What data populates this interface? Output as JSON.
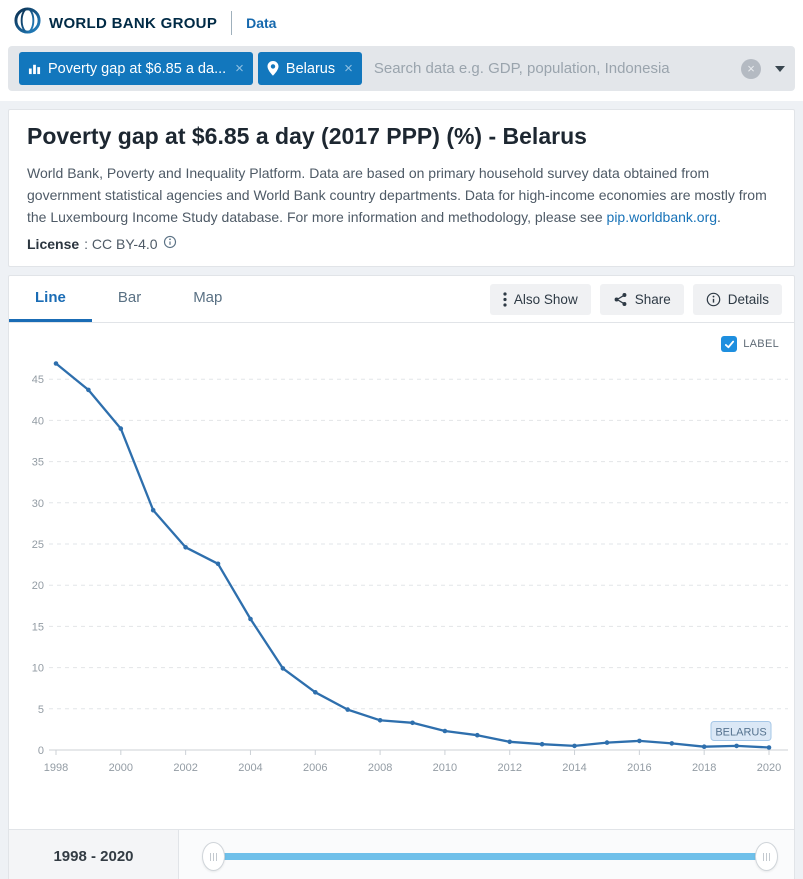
{
  "header": {
    "brand": "WORLD BANK GROUP",
    "site": "Data"
  },
  "search": {
    "filters": [
      {
        "label": "Poverty gap at $6.85 a da...",
        "icon": "bar-chart-icon",
        "close": "×"
      },
      {
        "label": "Belarus",
        "icon": "location-pin-icon",
        "close": "×"
      }
    ],
    "placeholder": "Search data e.g. GDP, population, Indonesia",
    "clear": "×"
  },
  "page": {
    "title": "Poverty gap at $6.85 a day (2017 PPP) (%) - Belarus",
    "description": "World Bank, Poverty and Inequality Platform. Data are based on primary household survey data obtained from government statistical agencies and World Bank country departments. Data for high-income economies are mostly from the Luxembourg Income Study database. For more information and methodology, please see ",
    "description_link": "pip.worldbank.org",
    "description_end": ".",
    "license_label": "License",
    "license_value": " : CC BY-4.0"
  },
  "tabs": [
    {
      "label": "Line",
      "active": true
    },
    {
      "label": "Bar",
      "active": false
    },
    {
      "label": "Map",
      "active": false
    }
  ],
  "toolbar": {
    "also_show": "Also Show",
    "share": "Share",
    "details": "Details"
  },
  "chart_controls": {
    "label_checkbox": "LABEL",
    "checked": true
  },
  "chart_data": {
    "type": "line",
    "title": "Poverty gap at $6.85 a day (2017 PPP) (%) - Belarus",
    "xlabel": "",
    "ylabel": "",
    "xlim": [
      1998,
      2020
    ],
    "ylim": [
      0,
      48
    ],
    "yticks": [
      0,
      5,
      10,
      15,
      20,
      25,
      30,
      35,
      40,
      45
    ],
    "xticks": [
      1998,
      2000,
      2002,
      2004,
      2006,
      2008,
      2010,
      2012,
      2014,
      2016,
      2018,
      2020
    ],
    "grid": "horizontal-dashed",
    "legend_position": "none",
    "line_color": "#2e6fad",
    "end_label": "BELARUS",
    "series": [
      {
        "name": "Belarus",
        "x": [
          1998,
          1999,
          2000,
          2001,
          2002,
          2003,
          2004,
          2005,
          2006,
          2007,
          2008,
          2009,
          2010,
          2011,
          2012,
          2013,
          2014,
          2015,
          2016,
          2017,
          2018,
          2019,
          2020
        ],
        "values": [
          46.9,
          43.7,
          39.0,
          29.1,
          24.6,
          22.6,
          15.9,
          9.9,
          7.0,
          4.9,
          3.6,
          3.3,
          2.3,
          1.8,
          1.0,
          0.7,
          0.5,
          0.9,
          1.1,
          0.8,
          0.4,
          0.5,
          0.3
        ]
      }
    ]
  },
  "slider": {
    "range_label": "1998 - 2020",
    "min": 1998,
    "max": 2020
  }
}
